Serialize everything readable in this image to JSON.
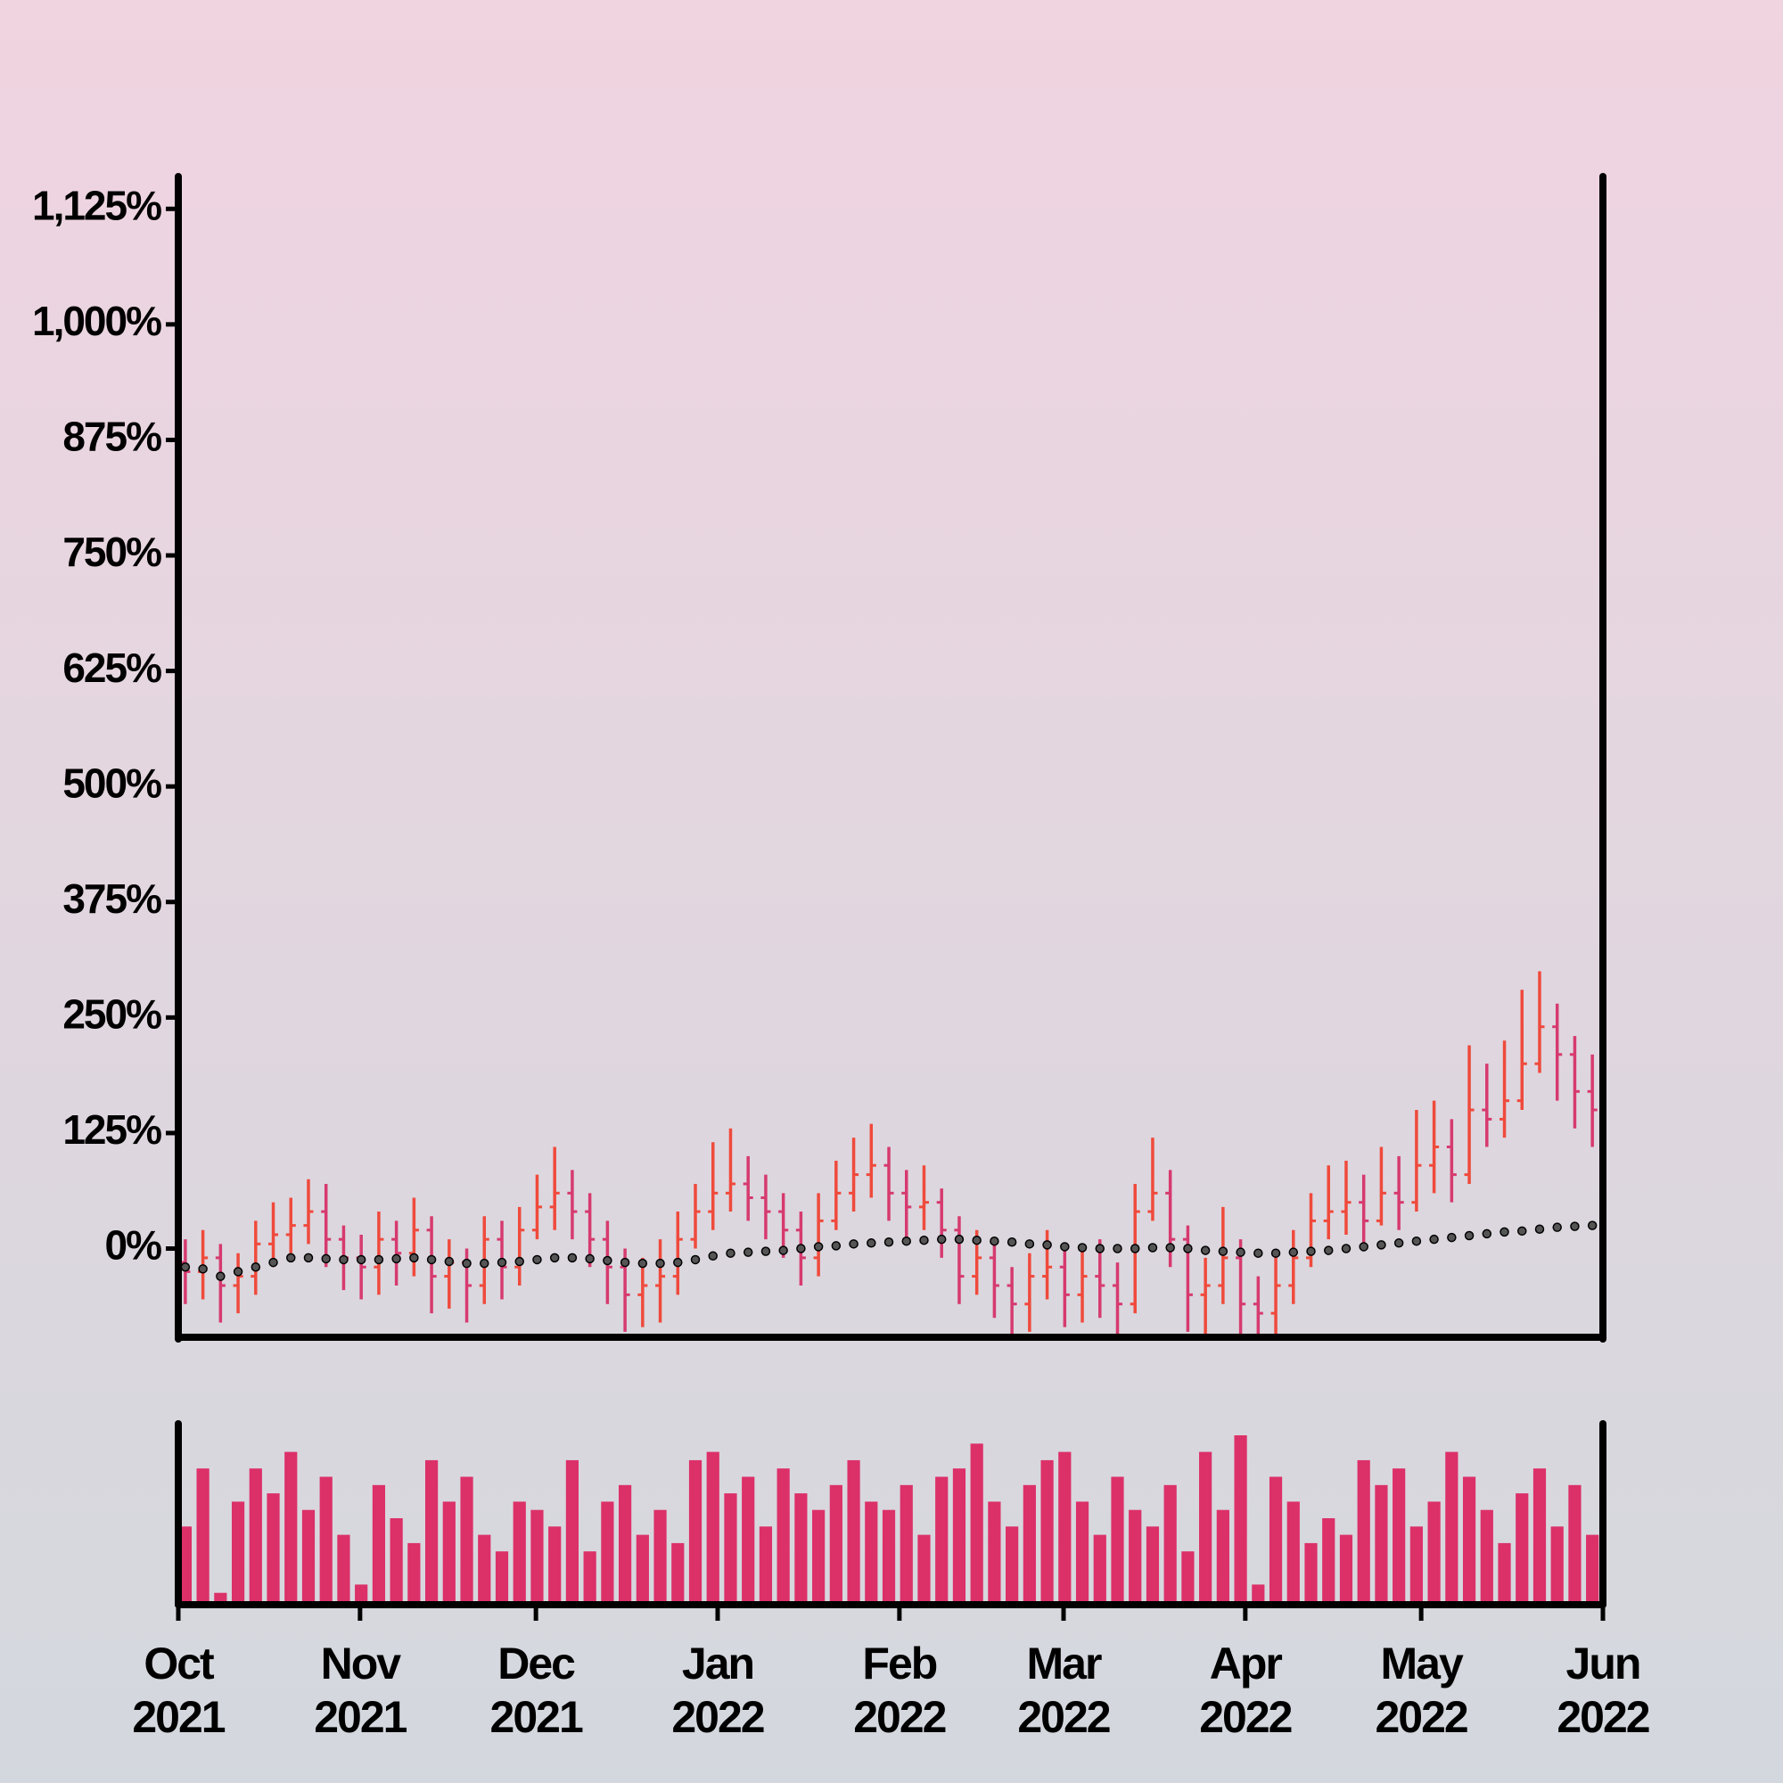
{
  "chart_data": {
    "type": "ohlc",
    "x": [
      "2021-10-01",
      "2021-10-04",
      "2021-10-07",
      "2021-10-10",
      "2021-10-13",
      "2021-10-16",
      "2021-10-19",
      "2021-10-22",
      "2021-10-25",
      "2021-10-28",
      "2021-10-31",
      "2021-11-03",
      "2021-11-06",
      "2021-11-09",
      "2021-11-12",
      "2021-11-15",
      "2021-11-18",
      "2021-11-21",
      "2021-11-24",
      "2021-11-27",
      "2021-11-30",
      "2021-12-03",
      "2021-12-06",
      "2021-12-09",
      "2021-12-12",
      "2021-12-15",
      "2021-12-18",
      "2021-12-21",
      "2021-12-24",
      "2021-12-27",
      "2021-12-30",
      "2022-01-02",
      "2022-01-05",
      "2022-01-08",
      "2022-01-11",
      "2022-01-14",
      "2022-01-17",
      "2022-01-20",
      "2022-01-23",
      "2022-01-26",
      "2022-01-29",
      "2022-02-01",
      "2022-02-04",
      "2022-02-07",
      "2022-02-10",
      "2022-02-13",
      "2022-02-16",
      "2022-02-19",
      "2022-02-22",
      "2022-02-25",
      "2022-02-28",
      "2022-03-03",
      "2022-03-06",
      "2022-03-09",
      "2022-03-12",
      "2022-03-15",
      "2022-03-18",
      "2022-03-21",
      "2022-03-24",
      "2022-03-27",
      "2022-03-30",
      "2022-04-02",
      "2022-04-05",
      "2022-04-08",
      "2022-04-11",
      "2022-04-14",
      "2022-04-17",
      "2022-04-20",
      "2022-04-23",
      "2022-04-26",
      "2022-04-29",
      "2022-05-02",
      "2022-05-05",
      "2022-05-08",
      "2022-05-11",
      "2022-05-14",
      "2022-05-17",
      "2022-05-20",
      "2022-05-23",
      "2022-05-26",
      "2022-05-29"
    ],
    "open": [
      -15,
      -25,
      -10,
      -40,
      -30,
      5,
      15,
      25,
      40,
      10,
      -10,
      -20,
      10,
      -5,
      20,
      -30,
      -15,
      -40,
      10,
      -20,
      20,
      45,
      60,
      40,
      10,
      -20,
      -50,
      -40,
      -30,
      10,
      40,
      60,
      70,
      55,
      40,
      20,
      -10,
      30,
      60,
      80,
      90,
      60,
      45,
      50,
      20,
      -30,
      -10,
      -40,
      -60,
      -30,
      -20,
      -50,
      -30,
      -40,
      -60,
      40,
      60,
      10,
      -50,
      -40,
      -10,
      -60,
      -70,
      -40,
      -10,
      30,
      40,
      50,
      30,
      60,
      50,
      90,
      110,
      80,
      150,
      140,
      160,
      200,
      240,
      210,
      170
    ],
    "high": [
      10,
      20,
      5,
      -5,
      30,
      50,
      55,
      75,
      70,
      25,
      15,
      40,
      30,
      55,
      35,
      10,
      0,
      35,
      30,
      45,
      80,
      110,
      85,
      60,
      30,
      0,
      -10,
      10,
      40,
      70,
      115,
      130,
      100,
      80,
      60,
      40,
      60,
      95,
      120,
      135,
      110,
      85,
      90,
      65,
      35,
      20,
      10,
      -20,
      -5,
      20,
      0,
      0,
      10,
      -15,
      70,
      120,
      85,
      25,
      -10,
      45,
      10,
      -30,
      -5,
      20,
      60,
      90,
      95,
      80,
      110,
      100,
      150,
      160,
      140,
      220,
      200,
      225,
      280,
      300,
      265,
      230,
      210
    ],
    "low": [
      -60,
      -55,
      -80,
      -70,
      -50,
      -20,
      -5,
      5,
      -20,
      -45,
      -55,
      -50,
      -40,
      -30,
      -70,
      -65,
      -80,
      -60,
      -55,
      -40,
      10,
      20,
      10,
      -20,
      -60,
      -90,
      -85,
      -80,
      -50,
      0,
      20,
      40,
      30,
      10,
      -10,
      -40,
      -30,
      20,
      40,
      55,
      30,
      10,
      20,
      -10,
      -60,
      -50,
      -75,
      -95,
      -90,
      -55,
      -85,
      -80,
      -75,
      -100,
      -70,
      30,
      -20,
      -90,
      -100,
      -60,
      -95,
      -110,
      -100,
      -60,
      -20,
      10,
      15,
      5,
      25,
      20,
      40,
      60,
      50,
      70,
      110,
      120,
      150,
      190,
      160,
      130,
      110
    ],
    "close": [
      -25,
      -10,
      -40,
      -30,
      5,
      15,
      25,
      40,
      10,
      -10,
      -20,
      10,
      -5,
      20,
      -30,
      -15,
      -40,
      10,
      -20,
      20,
      45,
      60,
      40,
      10,
      -20,
      -50,
      -40,
      -30,
      10,
      40,
      60,
      70,
      55,
      40,
      20,
      -10,
      30,
      60,
      80,
      90,
      60,
      45,
      50,
      20,
      -30,
      -10,
      -40,
      -60,
      -30,
      -20,
      -50,
      -30,
      -40,
      -60,
      40,
      60,
      10,
      -50,
      -40,
      -10,
      -60,
      -70,
      -40,
      -10,
      30,
      40,
      50,
      30,
      60,
      50,
      90,
      110,
      80,
      150,
      140,
      160,
      200,
      240,
      210,
      170,
      150
    ],
    "up_color": "#ef4a3c",
    "down_color": "#d63a6e",
    "ma": {
      "color": "#555555",
      "values": [
        -20,
        -22,
        -30,
        -25,
        -20,
        -15,
        -10,
        -10,
        -11,
        -12,
        -12,
        -12,
        -11,
        -10,
        -12,
        -14,
        -16,
        -16,
        -15,
        -14,
        -12,
        -10,
        -10,
        -11,
        -13,
        -15,
        -16,
        -16,
        -15,
        -12,
        -8,
        -5,
        -4,
        -3,
        -2,
        0,
        2,
        3,
        5,
        6,
        7,
        8,
        9,
        10,
        10,
        9,
        8,
        7,
        5,
        4,
        2,
        1,
        0,
        0,
        0,
        1,
        1,
        0,
        -2,
        -3,
        -4,
        -5,
        -5,
        -4,
        -3,
        -2,
        0,
        2,
        4,
        6,
        8,
        10,
        12,
        14,
        16,
        18,
        19,
        21,
        23,
        24,
        25
      ]
    },
    "volume": {
      "color": "#dc3068",
      "ylim": [
        0,
        100
      ],
      "values": [
        45,
        80,
        5,
        60,
        80,
        65,
        90,
        55,
        75,
        40,
        10,
        70,
        50,
        35,
        85,
        60,
        75,
        40,
        30,
        60,
        55,
        45,
        85,
        30,
        60,
        70,
        40,
        55,
        35,
        85,
        90,
        65,
        75,
        45,
        80,
        65,
        55,
        70,
        85,
        60,
        55,
        70,
        40,
        75,
        80,
        95,
        60,
        45,
        70,
        85,
        90,
        60,
        40,
        75,
        55,
        45,
        70,
        30,
        90,
        55,
        100,
        10,
        75,
        60,
        35,
        50,
        40,
        85,
        70,
        80,
        45,
        60,
        90,
        75,
        55,
        35,
        65,
        80,
        45,
        70,
        40
      ]
    },
    "xlim": [
      "2021-10-01",
      "2022-06-01"
    ],
    "xticks": [
      {
        "value": "2021-10-01",
        "label": "Oct\n2021"
      },
      {
        "value": "2021-11-01",
        "label": "Nov\n2021"
      },
      {
        "value": "2021-12-01",
        "label": "Dec\n2021"
      },
      {
        "value": "2022-01-01",
        "label": "Jan\n2022"
      },
      {
        "value": "2022-02-01",
        "label": "Feb\n2022"
      },
      {
        "value": "2022-03-01",
        "label": "Mar\n2022"
      },
      {
        "value": "2022-04-01",
        "label": "Apr\n2022"
      },
      {
        "value": "2022-05-01",
        "label": "May\n2022"
      },
      {
        "value": "2022-06-01",
        "label": "Jun\n2022"
      }
    ],
    "ylim": [
      -95,
      1160
    ],
    "yticks": [
      {
        "value": 0,
        "label": "0%"
      },
      {
        "value": 125,
        "label": "125%"
      },
      {
        "value": 250,
        "label": "250%"
      },
      {
        "value": 375,
        "label": "375%"
      },
      {
        "value": 500,
        "label": "500%"
      },
      {
        "value": 625,
        "label": "625%"
      },
      {
        "value": 750,
        "label": "750%"
      },
      {
        "value": 875,
        "label": "875%"
      },
      {
        "value": 1000,
        "label": "1,000%"
      },
      {
        "value": 1125,
        "label": "1,125%"
      }
    ]
  }
}
